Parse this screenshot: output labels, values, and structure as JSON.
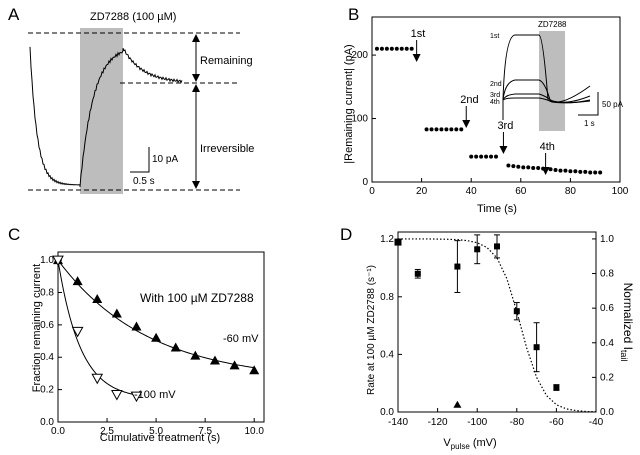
{
  "panels": {
    "A": {
      "letter": "A",
      "drug_label": "ZD7288 (100 µM)",
      "remaining_label": "Remaining",
      "irreversible_label": "Irreversible",
      "scale_current": "10 pA",
      "scale_time": "0.5 s"
    },
    "B": {
      "letter": "B",
      "xlabel": "Time (s)",
      "ylabel": "|Remaining current| (pA)",
      "arrows": [
        "1st",
        "2nd",
        "3rd",
        "4th"
      ],
      "inset": {
        "drug_label": "ZD7288",
        "trace_labels": [
          "1st",
          "2nd",
          "3rd",
          "4th"
        ],
        "scale_current": "50 pA",
        "scale_time": "1 s"
      }
    },
    "C": {
      "letter": "C",
      "xlabel": "Cumulative treatment (s)",
      "ylabel": "Fraction remaining current",
      "annotation": "With 100 µM ZD7288",
      "series_labels": [
        "-60 mV",
        "-100 mV"
      ]
    },
    "D": {
      "letter": "D",
      "xlabel": "V​pulse (mV)",
      "xlabel_main": "V",
      "xlabel_sub": "pulse",
      "xlabel_unit": " (mV)",
      "ylabel_left": "Rate at 100 µM ZD2788 (s⁻¹)",
      "ylabel_right_main": "Normalized I",
      "ylabel_right_sub": "tail"
    }
  },
  "chart_data": [
    {
      "panel": "B",
      "type": "scatter",
      "xlabel": "Time (s)",
      "ylabel": "|Remaining current| (pA)",
      "xlim": [
        0,
        100
      ],
      "ylim": [
        0,
        260
      ],
      "xticks": [
        0,
        20,
        40,
        60,
        80,
        100
      ],
      "yticks": [
        0,
        100,
        200
      ],
      "arrow_x": [
        18,
        38,
        53,
        70
      ],
      "arrow_labels": [
        "1st",
        "2nd",
        "3rd",
        "4th"
      ],
      "x": [
        2,
        4,
        6,
        8,
        10,
        12,
        14,
        16,
        22,
        24,
        26,
        28,
        30,
        32,
        34,
        36,
        40,
        42,
        44,
        46,
        48,
        50,
        55,
        57,
        59,
        61,
        63,
        65,
        67,
        69,
        72,
        74,
        76,
        78,
        80,
        82,
        84,
        86,
        88,
        90,
        92
      ],
      "y": [
        210,
        210,
        210,
        210,
        210,
        210,
        210,
        210,
        83,
        83,
        83,
        83,
        83,
        83,
        83,
        83,
        40,
        40,
        40,
        40,
        40,
        40,
        26,
        25,
        24,
        23,
        23,
        22,
        22,
        21,
        20,
        19,
        18,
        18,
        17,
        17,
        16,
        16,
        15,
        15,
        15
      ]
    },
    {
      "panel": "C",
      "type": "line",
      "xlabel": "Cumulative treatment (s)",
      "ylabel": "Fraction remaining current",
      "xlim": [
        0,
        10.5
      ],
      "ylim": [
        0,
        1.05
      ],
      "xticks": [
        0.0,
        2.5,
        5.0,
        7.5,
        10.0
      ],
      "yticks": [
        0.0,
        0.2,
        0.4,
        0.6,
        0.8,
        1.0
      ],
      "series": [
        {
          "name": "-60 mV",
          "x": [
            0,
            1,
            2,
            3,
            4,
            5,
            6,
            7,
            8,
            9,
            10
          ],
          "y": [
            1.0,
            0.87,
            0.76,
            0.67,
            0.59,
            0.52,
            0.46,
            0.41,
            0.38,
            0.35,
            0.32
          ]
        },
        {
          "name": "-100 mV",
          "x": [
            0,
            1,
            2,
            3,
            4
          ],
          "y": [
            1.0,
            0.56,
            0.27,
            0.17,
            0.16
          ]
        }
      ]
    },
    {
      "panel": "D",
      "type": "scatter",
      "xlabel": "Vpulse (mV)",
      "ylabel": "Rate at 100 µM ZD2788 (s⁻¹)",
      "xlim": [
        -140,
        -40
      ],
      "ylim_left": [
        0,
        1.25
      ],
      "ylim_right": [
        0,
        1.04
      ],
      "xticks": [
        -140,
        -120,
        -100,
        -80,
        -60,
        -40
      ],
      "yticks_left": [
        0.0,
        0.4,
        0.8,
        1.2
      ],
      "yticks_right": [
        0.0,
        0.2,
        0.4,
        0.6,
        0.8,
        1.0
      ],
      "rate": {
        "x": [
          -130,
          -110,
          -100,
          -90,
          -80,
          -70,
          -60
        ],
        "y": [
          0.96,
          1.01,
          1.13,
          1.15,
          0.7,
          0.45,
          0.17
        ],
        "err": [
          0.03,
          0.18,
          0.1,
          0.08,
          0.06,
          0.17,
          0.02
        ]
      },
      "extra_points": [
        {
          "marker": "square",
          "x": -140,
          "y": 1.18
        },
        {
          "marker": "triangle",
          "x": -110,
          "y": 0.05
        }
      ],
      "normalized_tail": {
        "x": [
          -140,
          -135,
          -130,
          -125,
          -120,
          -115,
          -110,
          -105,
          -100,
          -95,
          -90,
          -85,
          -80,
          -75,
          -70,
          -65,
          -60,
          -55,
          -50,
          -45,
          -40
        ],
        "y": [
          1.0,
          1.0,
          1.0,
          1.0,
          0.999,
          0.998,
          0.996,
          0.99,
          0.978,
          0.95,
          0.89,
          0.77,
          0.58,
          0.37,
          0.2,
          0.095,
          0.042,
          0.018,
          0.008,
          0.003,
          0.001
        ]
      }
    }
  ]
}
